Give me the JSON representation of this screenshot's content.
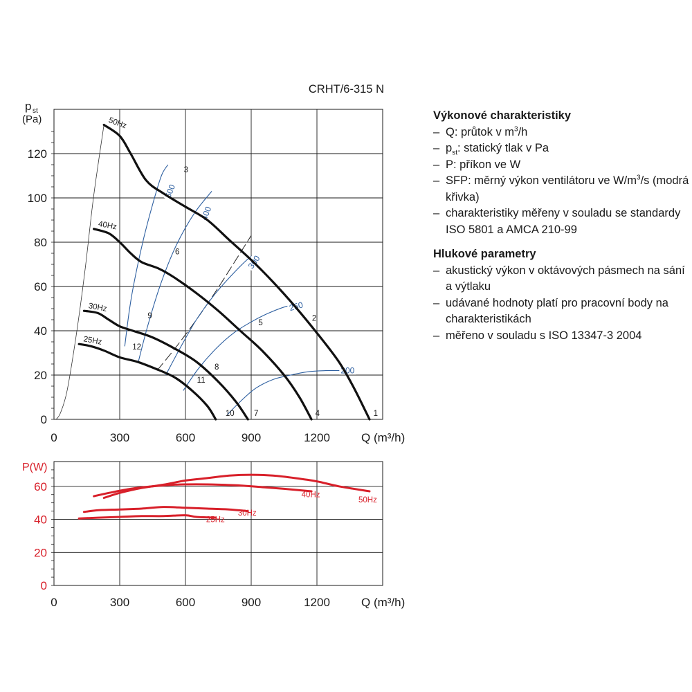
{
  "chart_data": [
    {
      "type": "line",
      "title": "CRHT/6-315 N",
      "ylabel_main": "p",
      "ylabel_sub": "st",
      "yunit": "(Pa)",
      "xlabel": "Q (m³/h)",
      "xlim": [
        0,
        1500
      ],
      "ylim": [
        0,
        140
      ],
      "xticks": [
        "0",
        "300",
        "600",
        "900",
        "1200"
      ],
      "yticks": [
        "0",
        "20",
        "40",
        "60",
        "80",
        "100",
        "120"
      ],
      "grid": true,
      "series": [
        {
          "name": "50Hz",
          "x": [
            228,
            300,
            350,
            420,
            500,
            600,
            700,
            800,
            900,
            1000,
            1100,
            1200,
            1300,
            1370,
            1440
          ],
          "y": [
            133,
            128,
            120,
            108,
            102,
            96,
            90,
            81,
            72,
            62,
            51,
            39,
            26,
            14,
            0
          ]
        },
        {
          "name": "40Hz",
          "x": [
            182,
            250,
            300,
            350,
            400,
            480,
            550,
            650,
            750,
            850,
            950,
            1050,
            1120,
            1175
          ],
          "y": [
            86,
            84,
            80,
            75,
            71,
            68,
            64,
            57,
            49,
            40,
            31,
            20,
            10,
            0
          ]
        },
        {
          "name": "30Hz",
          "x": [
            137,
            200,
            250,
            300,
            360,
            450,
            550,
            650,
            750,
            830,
            885
          ],
          "y": [
            49,
            48,
            45,
            42,
            40,
            37,
            32,
            26,
            17,
            8,
            0
          ]
        },
        {
          "name": "25Hz",
          "x": [
            114,
            170,
            230,
            300,
            380,
            460,
            550,
            630,
            700,
            738
          ],
          "y": [
            34,
            33,
            31,
            28,
            26,
            23,
            19,
            13,
            6,
            0
          ]
        }
      ],
      "system_curve": {
        "x": [
          10,
          30,
          60,
          100,
          140,
          180,
          228
        ],
        "y": [
          0,
          3,
          13,
          37,
          66,
          100,
          133
        ]
      },
      "sfp_curves": [
        {
          "name": "500",
          "x": [
            323,
            345,
            370,
            410,
            450,
            490,
            520
          ],
          "y": [
            33,
            50,
            64,
            82,
            97,
            110,
            115
          ]
        },
        {
          "name": "400",
          "x": [
            385,
            430,
            490,
            560,
            640,
            720
          ],
          "y": [
            26,
            43,
            62,
            79,
            93,
            103
          ]
        },
        {
          "name": "300",
          "x": [
            510,
            580,
            650,
            730,
            810,
            880,
            920
          ],
          "y": [
            20,
            33,
            45,
            56,
            65,
            72,
            75
          ]
        },
        {
          "name": "250",
          "x": [
            590,
            660,
            740,
            820,
            900,
            980,
            1060,
            1120
          ],
          "y": [
            13,
            23,
            32,
            39,
            44,
            48,
            51,
            52
          ]
        },
        {
          "name": "200",
          "x": [
            790,
            850,
            920,
            1000,
            1080,
            1160,
            1240,
            1320
          ],
          "y": [
            2,
            8,
            14,
            18,
            20,
            21.5,
            22,
            22
          ]
        }
      ],
      "dashed_line": {
        "x": [
          470,
          560,
          650,
          740,
          830,
          900
        ],
        "y": [
          22,
          33,
          45,
          58,
          72,
          83
        ]
      },
      "sfp_label_pos": [
        {
          "label": "500",
          "x": 530,
          "y": 103
        },
        {
          "label": "400",
          "x": 695,
          "y": 93
        },
        {
          "label": "300",
          "x": 913,
          "y": 71
        },
        {
          "label": "250",
          "x": 1105,
          "y": 51
        },
        {
          "label": "200",
          "x": 1340,
          "y": 22
        }
      ],
      "points": [
        {
          "label": "1",
          "x": 1445,
          "y": 0
        },
        {
          "label": "2",
          "x": 1165,
          "y": 43
        },
        {
          "label": "3",
          "x": 580,
          "y": 110
        },
        {
          "label": "4",
          "x": 1180,
          "y": 0
        },
        {
          "label": "5",
          "x": 920,
          "y": 41
        },
        {
          "label": "6",
          "x": 540,
          "y": 73
        },
        {
          "label": "7",
          "x": 900,
          "y": 0
        },
        {
          "label": "8",
          "x": 720,
          "y": 21
        },
        {
          "label": "9",
          "x": 415,
          "y": 44
        },
        {
          "label": "10",
          "x": 770,
          "y": 0
        },
        {
          "label": "11",
          "x": 640,
          "y": 15
        },
        {
          "label": "12",
          "x": 345,
          "y": 30
        }
      ]
    },
    {
      "type": "line",
      "ylabel": "P(W)",
      "xlabel": "Q (m³/h)",
      "xlim": [
        0,
        1500
      ],
      "ylim": [
        0,
        75
      ],
      "xticks": [
        "0",
        "300",
        "600",
        "900",
        "1200"
      ],
      "yticks": [
        "0",
        "20",
        "40",
        "60"
      ],
      "grid": true,
      "series": [
        {
          "name": "50Hz",
          "x": [
            228,
            300,
            400,
            500,
            600,
            700,
            800,
            900,
            1000,
            1100,
            1200,
            1300,
            1440
          ],
          "y": [
            53,
            56,
            59,
            61,
            63.5,
            65,
            66.5,
            67,
            66.5,
            65,
            63,
            60,
            57
          ]
        },
        {
          "name": "40Hz",
          "x": [
            182,
            250,
            350,
            450,
            550,
            650,
            750,
            850,
            950,
            1050,
            1175
          ],
          "y": [
            54,
            56,
            58.5,
            60,
            61,
            61.2,
            61,
            60.5,
            59.5,
            58.5,
            57
          ]
        },
        {
          "name": "30Hz",
          "x": [
            137,
            200,
            300,
            400,
            500,
            600,
            700,
            800,
            885
          ],
          "y": [
            44.5,
            45.5,
            46,
            46.5,
            47.5,
            47,
            46.5,
            46,
            45
          ]
        },
        {
          "name": "25Hz",
          "x": [
            114,
            200,
            300,
            400,
            500,
            600,
            650,
            738
          ],
          "y": [
            40.5,
            41,
            41.5,
            42,
            42,
            42.5,
            41.5,
            41
          ]
        }
      ],
      "series_label_pos": [
        {
          "label": "50Hz",
          "x": 1440,
          "y": 52
        },
        {
          "label": "40Hz",
          "x": 1180,
          "y": 55
        },
        {
          "label": "30Hz",
          "x": 890,
          "y": 44
        },
        {
          "label": "25Hz",
          "x": 745,
          "y": 40
        }
      ]
    }
  ],
  "legend": {
    "perf_title": "Výkonové charakteristiky",
    "perf_items": [
      {
        "a": "Q: průtok v m",
        "sup": "3",
        "b": "/h"
      },
      {
        "a": "p",
        "sub": "st",
        "b": ": statický tlak v Pa"
      },
      {
        "a": "P: příkon ve W"
      },
      {
        "a": "SFP: měrný výkon ventilátoru ve W/m",
        "sup": "3",
        "b": "/s (modrá křivka)"
      },
      {
        "a": "charakteristiky měřeny v souladu se standardy ISO 5801 a AMCA 210-99"
      }
    ],
    "noise_title": "Hlukové parametry",
    "noise_items": [
      {
        "a": "akustický výkon v oktávových pásmech na sání a výtlaku"
      },
      {
        "a": "udávané hodnoty platí pro pracovní body na charakteristikách"
      },
      {
        "a": "měřeno v souladu s ISO 13347-3 2004"
      }
    ]
  },
  "colors": {
    "fan_curve": "#111111",
    "sfp_curve": "#2d5fa0",
    "power_curve": "#d8202a",
    "power_axis_text": "#d8202a",
    "grid": "#1a1a1a"
  }
}
